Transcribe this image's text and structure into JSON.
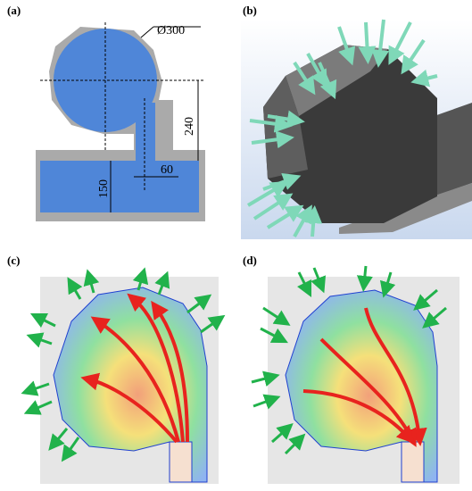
{
  "panels": [
    {
      "label": "(a)",
      "dimensions": [
        "Ø300",
        "240",
        "60",
        "150"
      ]
    },
    {
      "label": "(b)"
    },
    {
      "label": "(c)"
    },
    {
      "label": "(d)"
    }
  ]
}
